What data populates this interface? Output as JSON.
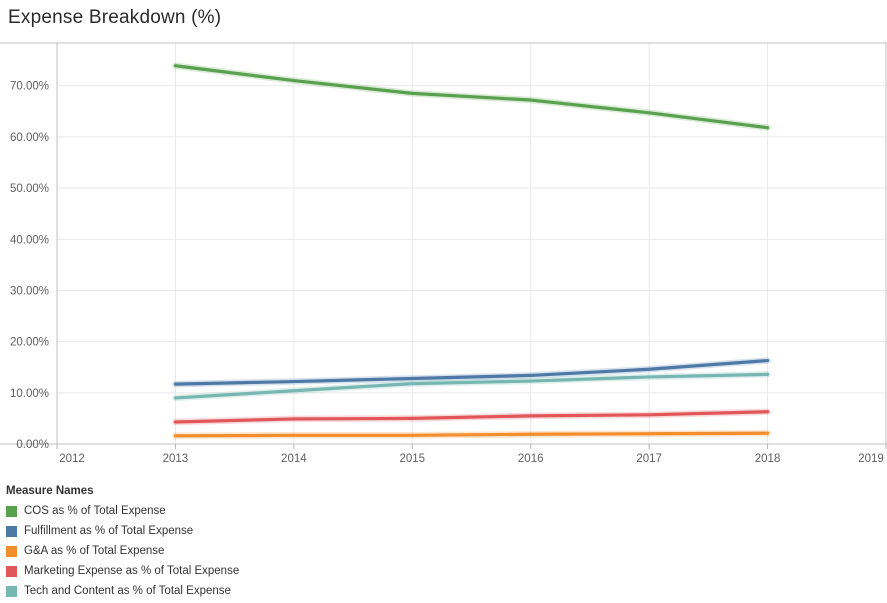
{
  "title": "Expense Breakdown (%)",
  "legend": {
    "title": "Measure Names",
    "items": [
      {
        "label": "COS as % of Total Expense",
        "color": "#59A14F"
      },
      {
        "label": "Fulfillment as % of Total Expense",
        "color": "#4E79A7"
      },
      {
        "label": "G&A as % of Total Expense",
        "color": "#F28E2B"
      },
      {
        "label": "Marketing Expense as % of Total Expense",
        "color": "#E15759"
      },
      {
        "label": "Tech and Content as % of Total Expense",
        "color": "#76B7B2"
      }
    ]
  },
  "chart_data": {
    "type": "line",
    "title": "Expense Breakdown (%)",
    "x": [
      2013,
      2014,
      2015,
      2016,
      2017,
      2018
    ],
    "series": [
      {
        "name": "COS as % of Total Expense",
        "color": "#59A14F",
        "values": [
          73.9,
          71.0,
          68.5,
          67.2,
          64.7,
          61.8
        ]
      },
      {
        "name": "Fulfillment as % of Total Expense",
        "color": "#4E79A7",
        "values": [
          11.7,
          12.2,
          12.8,
          13.4,
          14.6,
          16.3
        ]
      },
      {
        "name": "G&A as % of Total Expense",
        "color": "#F28E2B",
        "values": [
          1.6,
          1.7,
          1.7,
          1.9,
          2.0,
          2.1
        ]
      },
      {
        "name": "Marketing Expense as % of Total Expense",
        "color": "#E15759",
        "values": [
          4.3,
          4.9,
          5.0,
          5.5,
          5.7,
          6.3
        ]
      },
      {
        "name": "Tech and Content as % of Total Expense",
        "color": "#76B7B2",
        "values": [
          9.0,
          10.4,
          11.8,
          12.3,
          13.1,
          13.6
        ]
      }
    ],
    "xlabel": "",
    "ylabel": "",
    "xlim": [
      2012,
      2019
    ],
    "ylim": [
      0,
      78.3
    ],
    "x_ticks": [
      {
        "value": 2012,
        "label": "2012"
      },
      {
        "value": 2013,
        "label": "2013"
      },
      {
        "value": 2014,
        "label": "2014"
      },
      {
        "value": 2015,
        "label": "2015"
      },
      {
        "value": 2016,
        "label": "2016"
      },
      {
        "value": 2017,
        "label": "2017"
      },
      {
        "value": 2018,
        "label": "2018"
      },
      {
        "value": 2019,
        "label": "2019"
      }
    ],
    "y_ticks": [
      {
        "value": 0,
        "label": "0.00%"
      },
      {
        "value": 10,
        "label": "10.00%"
      },
      {
        "value": 20,
        "label": "20.00%"
      },
      {
        "value": 30,
        "label": "30.00%"
      },
      {
        "value": 40,
        "label": "40.00%"
      },
      {
        "value": 50,
        "label": "50.00%"
      },
      {
        "value": 60,
        "label": "60.00%"
      },
      {
        "value": 70,
        "label": "70.00%"
      }
    ],
    "grid": true,
    "legend_title": "Measure Names",
    "legend_position": "bottom-left"
  },
  "colors": {
    "background": "#ffffff",
    "axis_line": "#c0c0c0",
    "gridline": "#e9e9e9",
    "tick_mark": "#b4b4b4",
    "tick_text": "#5f5f5f",
    "title_text": "#2b2b2b",
    "legend_text": "#333333"
  }
}
